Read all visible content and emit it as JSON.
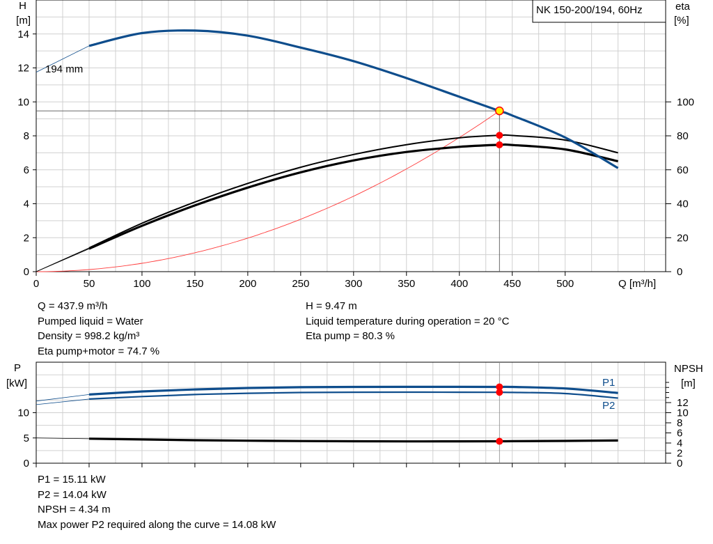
{
  "chart_data": [
    {
      "type": "line",
      "title": "NK 150-200/194, 60Hz",
      "xlabel": "Q [m³/h]",
      "ylabel_left": [
        "H",
        "[m]"
      ],
      "ylabel_right": [
        "eta",
        "[%]"
      ],
      "xlim": [
        0,
        595
      ],
      "ylim_left": [
        0,
        16
      ],
      "ylim_right": [
        0,
        160
      ],
      "x_ticks": [
        0,
        50,
        100,
        150,
        200,
        250,
        300,
        350,
        400,
        450,
        500
      ],
      "y_ticks_left": [
        0,
        2,
        4,
        6,
        8,
        10,
        12,
        14
      ],
      "y_ticks_right": [
        0,
        20,
        40,
        60,
        80,
        100
      ],
      "grid": true,
      "series": [
        {
          "name": "194 mm",
          "axis": "left",
          "color": "#0e4d8c",
          "x": [
            50,
            100,
            150,
            200,
            250,
            300,
            350,
            400,
            437.9,
            450,
            500,
            550
          ],
          "y": [
            13.3,
            14.05,
            14.2,
            13.9,
            13.2,
            12.4,
            11.4,
            10.3,
            9.47,
            9.2,
            7.9,
            6.1
          ]
        },
        {
          "name": "",
          "axis": "right",
          "color": "#000000",
          "x": [
            50,
            100,
            150,
            200,
            250,
            300,
            350,
            400,
            437.9,
            450,
            500,
            550
          ],
          "y": [
            14,
            28.5,
            41,
            52,
            61.5,
            69,
            74.8,
            78.8,
            80.3,
            80.2,
            77.5,
            70
          ]
        },
        {
          "name": "",
          "axis": "right",
          "color": "#000000",
          "x": [
            50,
            100,
            150,
            200,
            250,
            300,
            350,
            400,
            437.9,
            450,
            500,
            550
          ],
          "y": [
            13.5,
            27,
            39,
            49.5,
            58.5,
            65.5,
            70.5,
            73.5,
            74.7,
            74.6,
            72,
            65
          ]
        }
      ],
      "operating_point": {
        "Q": 437.9,
        "H": 9.47,
        "eta_pump": 80.3,
        "eta_pump_motor": 74.7
      }
    },
    {
      "type": "line",
      "xlabel": "",
      "ylabel_left": [
        "P",
        "[kW]"
      ],
      "ylabel_right": [
        "NPSH",
        "[m]"
      ],
      "xlim": [
        0,
        595
      ],
      "ylim_left": [
        0,
        20
      ],
      "ylim_right": [
        0,
        20
      ],
      "y_ticks_left": [
        0,
        5,
        10
      ],
      "y_ticks_right": [
        0,
        2,
        4,
        6,
        8,
        10,
        12
      ],
      "grid": true,
      "series": [
        {
          "name": "P1",
          "axis": "left",
          "color": "#0e4d8c",
          "x": [
            50,
            100,
            150,
            200,
            250,
            300,
            350,
            400,
            437.9,
            450,
            500,
            550
          ],
          "y": [
            13.6,
            14.2,
            14.6,
            14.9,
            15.05,
            15.1,
            15.12,
            15.12,
            15.11,
            15.1,
            14.8,
            13.9
          ]
        },
        {
          "name": "P2",
          "axis": "left",
          "color": "#0e4d8c",
          "x": [
            50,
            100,
            150,
            200,
            250,
            300,
            350,
            400,
            437.9,
            450,
            500,
            550
          ],
          "y": [
            12.7,
            13.2,
            13.6,
            13.85,
            14.0,
            14.05,
            14.07,
            14.06,
            14.04,
            14.02,
            13.8,
            12.9
          ]
        },
        {
          "name": "NPSH",
          "axis": "right",
          "color": "#000000",
          "x": [
            50,
            100,
            150,
            200,
            250,
            300,
            350,
            400,
            437.9,
            450,
            500,
            550
          ],
          "y": [
            4.85,
            4.7,
            4.55,
            4.45,
            4.38,
            4.34,
            4.32,
            4.33,
            4.34,
            4.36,
            4.42,
            4.5
          ]
        }
      ],
      "operating_point": {
        "P1": 15.11,
        "P2": 14.04,
        "NPSH": 4.34
      }
    }
  ],
  "info_top": {
    "left": [
      "Q = 437.9 m³/h",
      "Pumped liquid = Water",
      "Density = 998.2 kg/m³",
      "Eta pump+motor = 74.7 %"
    ],
    "right": [
      "H = 9.47 m",
      "Liquid temperature during operation = 20 °C",
      "Eta pump = 80.3 %"
    ]
  },
  "info_bottom": [
    "P1 = 15.11 kW",
    "P2 = 14.04 kW",
    "NPSH = 4.34 m",
    "Max power P2 required along the curve = 14.08 kW"
  ]
}
